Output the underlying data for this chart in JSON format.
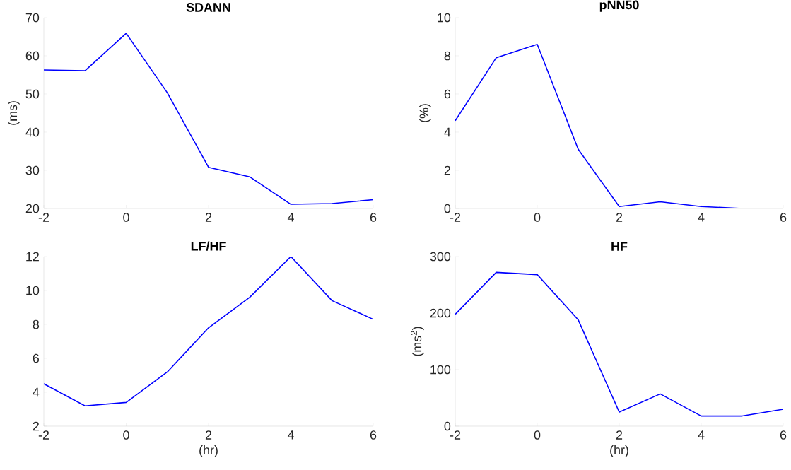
{
  "chart_data": [
    {
      "type": "line",
      "title": "SDANN",
      "ylabel": "(ms)",
      "x": [
        -2,
        -1,
        0,
        1,
        2,
        3,
        4,
        5,
        6
      ],
      "xlim": [
        -2,
        6
      ],
      "xticks": [
        -2,
        0,
        2,
        4,
        6
      ],
      "ylim": [
        20,
        70
      ],
      "yticks": [
        20,
        30,
        40,
        50,
        60,
        70
      ],
      "series": [
        {
          "color": "#0000ff",
          "values": [
            56.3,
            56.1,
            65.9,
            50.3,
            30.8,
            28.3,
            21.1,
            21.3,
            22.3
          ]
        }
      ]
    },
    {
      "type": "line",
      "title": "pNN50",
      "ylabel": "(%)",
      "x": [
        -2,
        -1,
        0,
        1,
        2,
        3,
        4,
        5,
        6
      ],
      "xlim": [
        -2,
        6
      ],
      "xticks": [
        -2,
        0,
        2,
        4,
        6
      ],
      "ylim": [
        0,
        10
      ],
      "yticks": [
        0,
        2,
        4,
        6,
        8,
        10
      ],
      "series": [
        {
          "color": "#0000ff",
          "values": [
            4.6,
            7.9,
            8.6,
            3.1,
            0.1,
            0.35,
            0.1,
            0,
            0
          ]
        }
      ]
    },
    {
      "type": "line",
      "title": "LF/HF",
      "xlabel": "(hr)",
      "x": [
        -2,
        -1,
        0,
        1,
        2,
        3,
        4,
        5,
        6
      ],
      "xlim": [
        -2,
        6
      ],
      "xticks": [
        -2,
        0,
        2,
        4,
        6
      ],
      "ylim": [
        2,
        12
      ],
      "yticks": [
        2,
        4,
        6,
        8,
        10,
        12
      ],
      "series": [
        {
          "color": "#0000ff",
          "values": [
            4.5,
            3.2,
            3.4,
            5.2,
            7.8,
            9.6,
            12.0,
            9.4,
            8.3
          ]
        }
      ]
    },
    {
      "type": "line",
      "title": "HF",
      "xlabel": "(hr)",
      "ylabel": "(ms$^{2}$)",
      "x": [
        -2,
        -1,
        0,
        1,
        2,
        3,
        4,
        5,
        6
      ],
      "xlim": [
        -2,
        6
      ],
      "xticks": [
        -2,
        0,
        2,
        4,
        6
      ],
      "ylim": [
        0,
        300
      ],
      "yticks": [
        0,
        100,
        200,
        300
      ],
      "series": [
        {
          "color": "#0000ff",
          "values": [
            198,
            272,
            268,
            188,
            25,
            57,
            18,
            18,
            30
          ]
        }
      ]
    }
  ]
}
